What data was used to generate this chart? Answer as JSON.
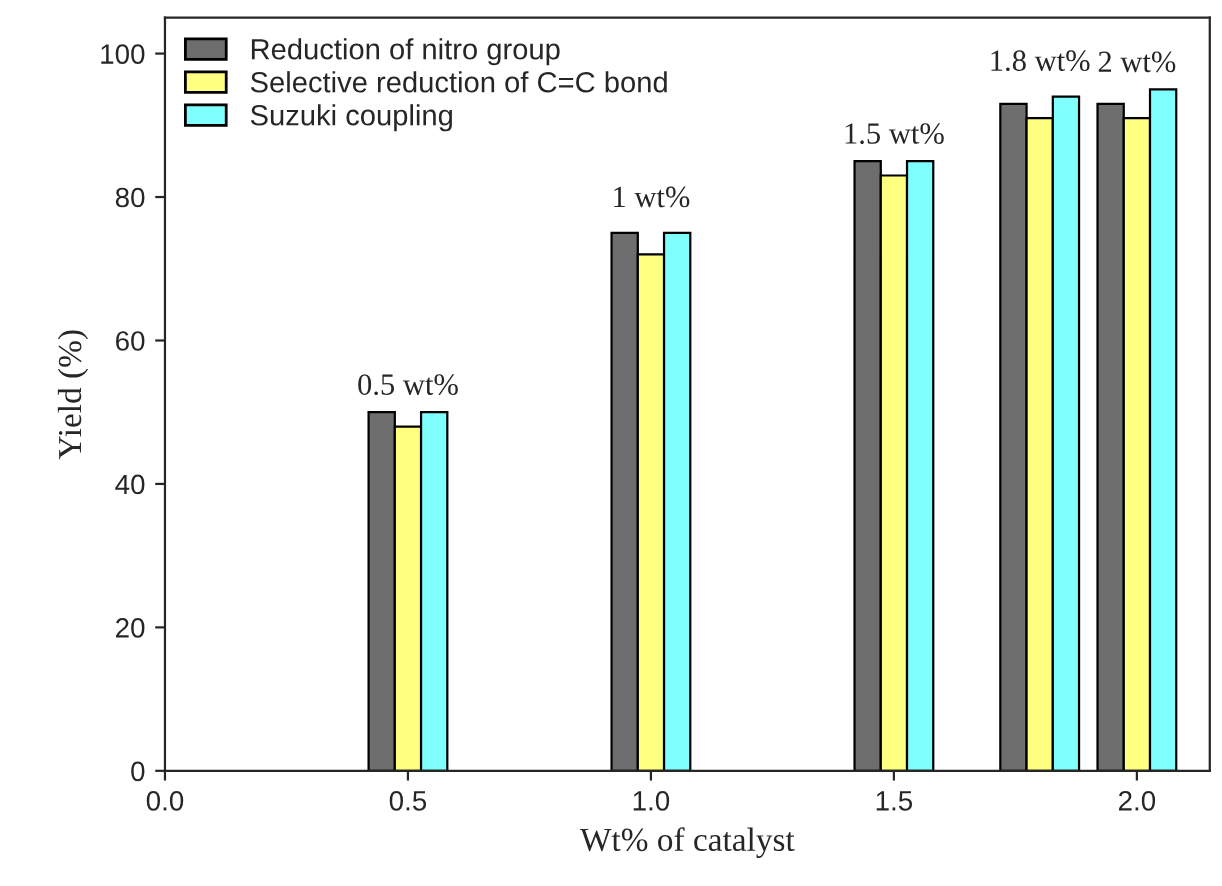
{
  "chart_data": {
    "type": "bar",
    "xlabel": "Wt% of catalyst",
    "ylabel": "Yield (%)",
    "x": [
      0.5,
      1.0,
      1.5,
      1.8,
      2.0
    ],
    "series": [
      {
        "name": "Reduction of nitro group",
        "color": "#6e6e6e",
        "values": [
          50,
          75,
          85,
          93,
          93
        ]
      },
      {
        "name": "Selective reduction of C=C bond",
        "color": "#ffff80",
        "values": [
          48,
          72,
          83,
          91,
          91
        ]
      },
      {
        "name": "Suzuki coupling",
        "color": "#80ffff",
        "values": [
          50,
          75,
          85,
          94,
          95
        ]
      }
    ],
    "xlim": [
      0,
      2.15
    ],
    "xticks": [
      {
        "value": 0,
        "label": "0.0"
      },
      {
        "value": 0.5,
        "label": "0.5"
      },
      {
        "value": 1.0,
        "label": "1.0"
      },
      {
        "value": 1.5,
        "label": "1.5"
      },
      {
        "value": 2.0,
        "label": "2.0"
      }
    ],
    "ylim": [
      0,
      105
    ],
    "yticks": [
      0,
      20,
      40,
      60,
      80,
      100
    ],
    "annotations": [
      "0.5 wt%",
      "1 wt%",
      "1.5 wt%",
      "1.8 wt%",
      "2 wt%"
    ],
    "legend": "top left",
    "grid": false
  }
}
